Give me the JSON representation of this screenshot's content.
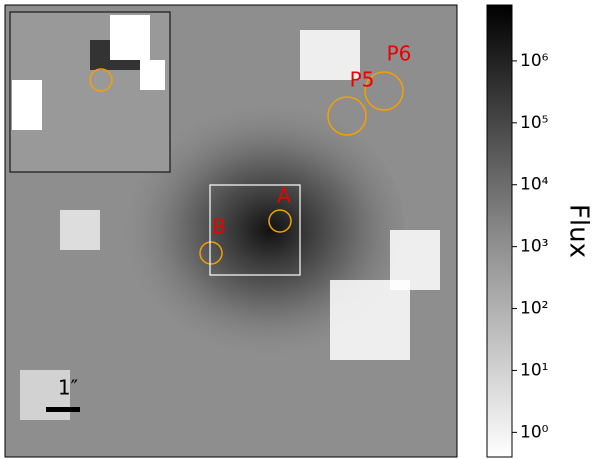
{
  "image": {
    "sources": [
      "A",
      "B",
      "P5",
      "P6"
    ],
    "scale_bar": "1″"
  },
  "colorbar": {
    "label": "Flux",
    "scale": "log",
    "lim": [
      0.4,
      8000000
    ],
    "ticks": [
      {
        "value": 1,
        "label": "10⁰"
      },
      {
        "value": 10,
        "label": "10¹"
      },
      {
        "value": 100,
        "label": "10²"
      },
      {
        "value": 1000,
        "label": "10³"
      },
      {
        "value": 10000,
        "label": "10⁴"
      },
      {
        "value": 100000,
        "label": "10⁵"
      },
      {
        "value": 1000000,
        "label": "10⁶"
      }
    ]
  }
}
